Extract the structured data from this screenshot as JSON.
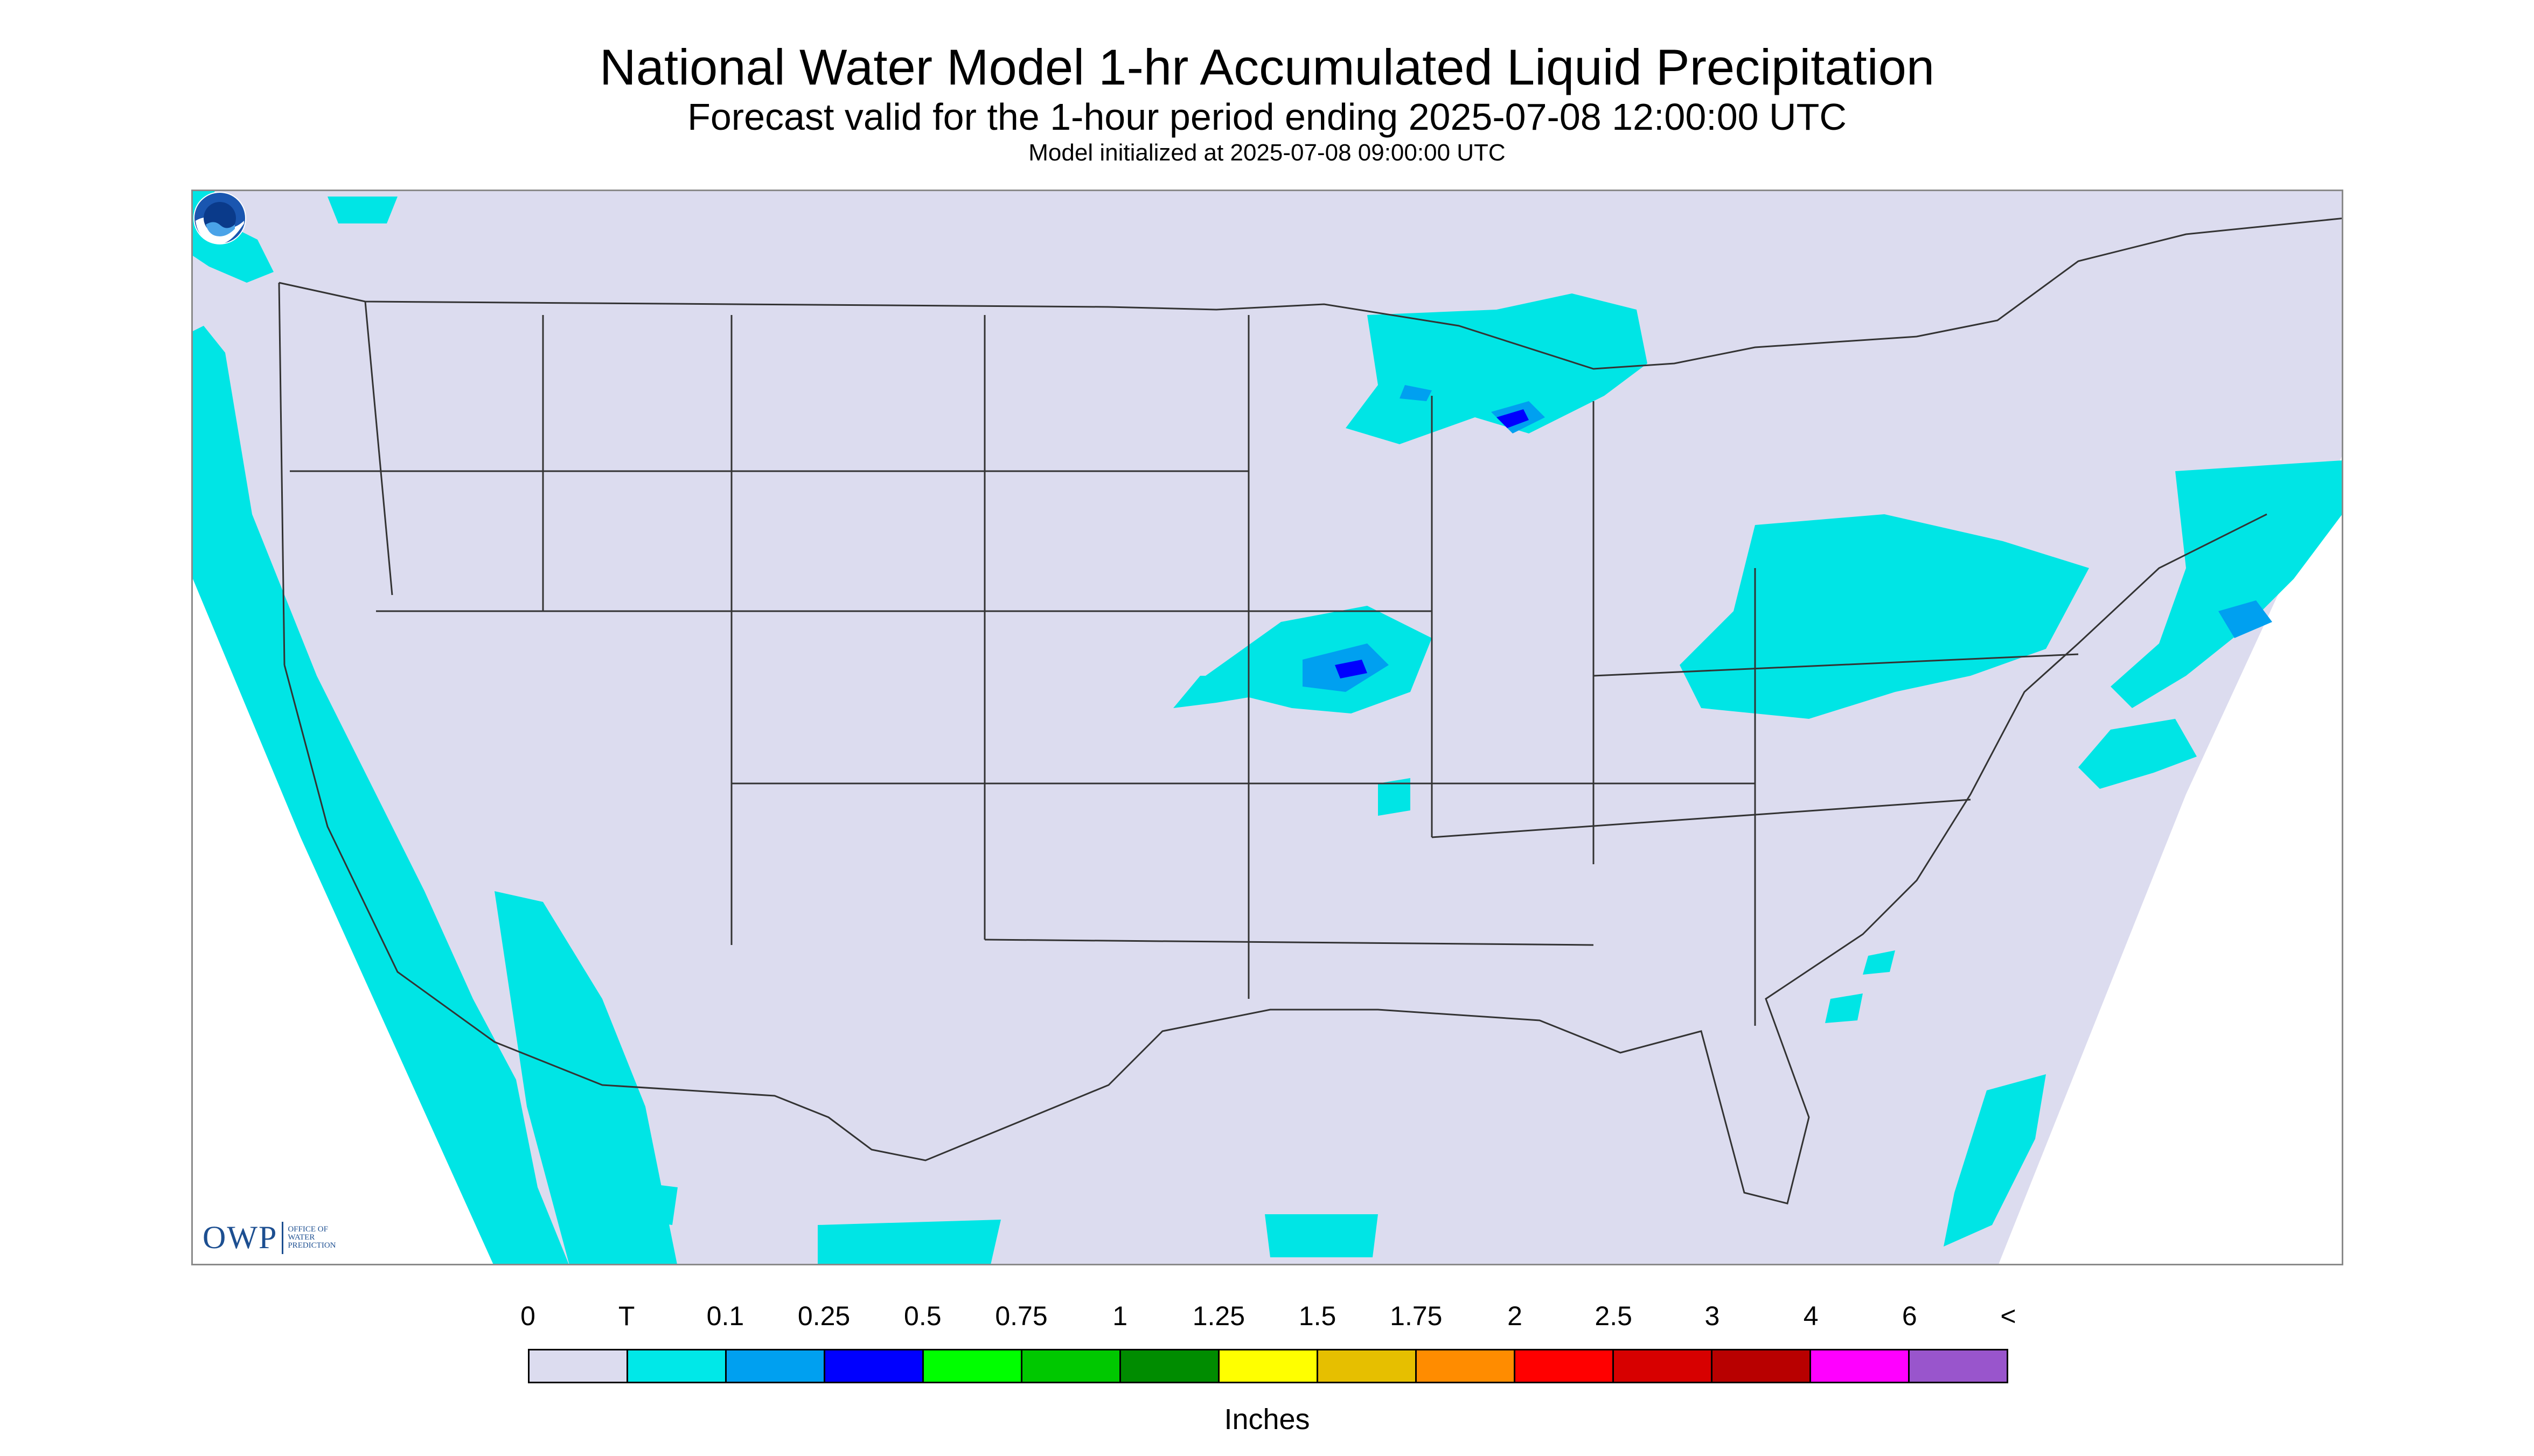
{
  "title": "National Water Model 1-hr Accumulated Liquid Precipitation",
  "subtitle": "Forecast valid for the 1-hour period ending 2025-07-08 12:00:00 UTC",
  "init_text": "Model initialized at 2025-07-08 09:00:00 UTC",
  "logo": {
    "owp_text": "OWP",
    "owp_sub": "OFFICE OF WATER PREDICTION",
    "noaa_text": "NOAA"
  },
  "map": {
    "background_color": "#dcdcef",
    "trace_color": "#00e5e5",
    "light_blue_color": "#00a0f0",
    "blue_color": "#0000ff",
    "boundary_color": "#333333"
  },
  "legend": {
    "labels": [
      "0",
      "T",
      "0.1",
      "0.25",
      "0.5",
      "0.75",
      "1",
      "1.25",
      "1.5",
      "1.75",
      "2",
      "2.5",
      "3",
      "4",
      "6",
      "<"
    ],
    "colors": [
      "#dcdcef",
      "#00e8e8",
      "#00a0f0",
      "#0000ff",
      "#00ff00",
      "#00c800",
      "#008c00",
      "#ffff00",
      "#e6bf00",
      "#ff8c00",
      "#ff0000",
      "#d70000",
      "#b80000",
      "#ff00ff",
      "#9955cc"
    ],
    "units": "Inches"
  }
}
